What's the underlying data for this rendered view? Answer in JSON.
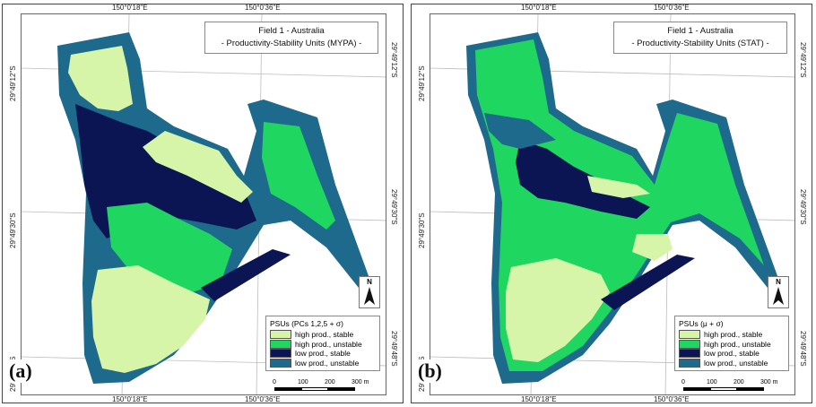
{
  "colors": {
    "high_stable": "#d6f5a8",
    "high_unstable": "#1fd760",
    "low_stable": "#0b1553",
    "low_unstable": "#1e6a8c"
  },
  "panels": [
    {
      "label": "(a)",
      "title_line1": "Field 1 - Australia",
      "title_line2": "- Productivity-Stability Units (MYPA) -",
      "legend_title": "PSUs (PCs 1,2,5 + σ)",
      "top_ticks": [
        "150°0'18\"E",
        "150°0'36\"E"
      ],
      "bottom_ticks": [
        "150°0'18\"E",
        "150°0'36\"E"
      ],
      "left_ticks": [
        "29°49'12\"S",
        "29°49'30\"S",
        "29°49'48\"S"
      ],
      "right_ticks": [
        "29°49'12\"S",
        "29°49'30\"S",
        "29°49'48\"S"
      ]
    },
    {
      "label": "(b)",
      "title_line1": "Field 1 - Australia",
      "title_line2": "- Productivity-Stability Units (STAT) -",
      "legend_title": "PSUs (μ + σ)",
      "top_ticks": [
        "150°0'18\"E",
        "150°0'36\"E"
      ],
      "bottom_ticks": [
        "150°0'18\"E",
        "150°0'36\"E"
      ],
      "left_ticks": [
        "29°49'12\"S",
        "29°49'30\"S",
        "29°49'48\"S"
      ],
      "right_ticks": [
        "29°49'12\"S",
        "29°49'30\"S",
        "29°49'48\"S"
      ]
    }
  ],
  "legend_items": [
    "high prod., stable",
    "high prod., unstable",
    "low prod., stable",
    "low prod., unstable"
  ],
  "scale_labels": [
    "0",
    "100",
    "200",
    "300 m"
  ],
  "north_label": "N"
}
